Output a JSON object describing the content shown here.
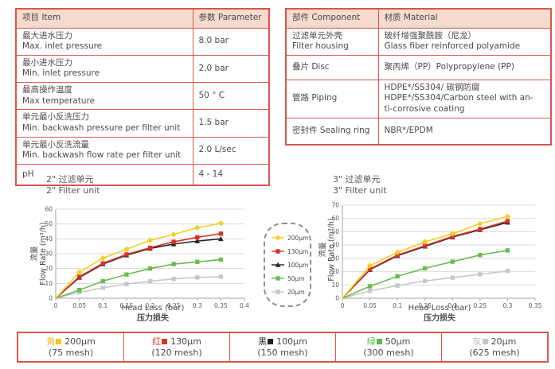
{
  "colors": {
    "table_border": "#d6564c",
    "table_header_bg": "#f5dacd",
    "grid": "#d9d9d9",
    "axis": "#a6a6a6",
    "text": "#4a4a4a"
  },
  "tables": {
    "item": {
      "headers": [
        "项目 Item",
        "参数 Parameter"
      ],
      "rows": [
        {
          "item": "最大进水压力\nMax. inlet pressure",
          "value": "8.0 bar"
        },
        {
          "item": "最小进水压力\nMin. inlet pressure",
          "value": "2.0 bar"
        },
        {
          "item": "最高操作温度\nMax temperature",
          "value": "50 ° C"
        },
        {
          "item": "单元最小反洗压力\nMin. backwash pressure per filter unit",
          "value": "1.5 bar"
        },
        {
          "item": "单元最小反洗流量\nMin. backwash flow rate per filter unit",
          "value": "2.0 L/sec"
        },
        {
          "item": "pH",
          "value": "4 - 14"
        }
      ]
    },
    "component": {
      "headers": [
        "部件 Component",
        "材质 Material"
      ],
      "rows": [
        {
          "component": "过滤单元外壳\nFilter housing",
          "material": "玻纤增强聚酰胺（尼龙）\nGlass fiber reinforced polyamide"
        },
        {
          "component": "叠片 Disc",
          "material": "聚丙烯（PP）Polypropylene (PP)"
        },
        {
          "component": "管路 Piping",
          "material": "HDPE*/SS304/ 碳钢防腐\nHDPE*/SS304/Carbon steel with an-\nti-corrosive coating"
        },
        {
          "component": "密封件 Sealing ring",
          "material": "NBR*/EPDM"
        }
      ]
    }
  },
  "chart_data": [
    {
      "type": "line",
      "title_zh": "2\"  过滤单元",
      "title_en": "2\"  Filter unit",
      "ylabel_zh": "流量",
      "ylabel_en": "Flow Rate (m³/h)",
      "xlabel": "Head Loss (bar)",
      "xlabel_zh": "压力损失",
      "ymax": 60,
      "yticks": [
        0,
        10,
        20,
        30,
        40,
        50,
        60
      ],
      "xmax": 0.4,
      "xticks": [
        "0",
        "0.05",
        "0.1",
        "0.15",
        "0.2",
        "0.25",
        "0.3",
        "0.35",
        "0.4"
      ],
      "x": [
        0,
        0.05,
        0.1,
        0.15,
        0.2,
        0.25,
        0.3,
        0.35
      ],
      "grid": "horizontal",
      "legend_position": "between-charts",
      "series": [
        {
          "name": "200μm",
          "color": "#f2d025",
          "marker": "diamond",
          "values": [
            0,
            17.5,
            27,
            33,
            39,
            43,
            47.5,
            50.5
          ]
        },
        {
          "name": "130μm",
          "color": "#dd3327",
          "marker": "square",
          "values": [
            0,
            14.5,
            23.5,
            29.5,
            34,
            38,
            41,
            43.5
          ]
        },
        {
          "name": "100μm",
          "color": "#222222",
          "marker": "triangle",
          "values": [
            0,
            14,
            23,
            29,
            33.5,
            36.5,
            38.5,
            40
          ]
        },
        {
          "name": "50μm",
          "color": "#67bd50",
          "marker": "square",
          "values": [
            0,
            5.5,
            11.5,
            16,
            20,
            23,
            24.5,
            26
          ]
        },
        {
          "name": "20μm",
          "color": "#c7c7c7",
          "marker": "square",
          "values": [
            0,
            4,
            7,
            9.5,
            11.5,
            13,
            14,
            14.5
          ]
        }
      ]
    },
    {
      "type": "line",
      "title_zh": "3\"  过滤单元",
      "title_en": "3\"  Filter unit",
      "ylabel_zh": "流量",
      "ylabel_en": "Flow Rate (m³/h)",
      "xlabel": "Head Loss (bar)",
      "xlabel_zh": "压力损失",
      "ymax": 70,
      "yticks": [
        0,
        10,
        20,
        30,
        40,
        50,
        60,
        70
      ],
      "xmax": 0.35,
      "xticks": [
        "0",
        "0.05",
        "0.1",
        "0.15",
        "0.2",
        "0.25",
        "0.3",
        "0.35"
      ],
      "x": [
        0,
        0.05,
        0.1,
        0.15,
        0.2,
        0.25,
        0.3
      ],
      "grid": "horizontal",
      "series": [
        {
          "name": "200μm",
          "color": "#f2d025",
          "marker": "diamond",
          "values": [
            0,
            24.5,
            34.5,
            42.5,
            48.5,
            56,
            61.5
          ]
        },
        {
          "name": "130μm",
          "color": "#dd3327",
          "marker": "square",
          "values": [
            0,
            22,
            32.5,
            39.5,
            46.5,
            52,
            58
          ]
        },
        {
          "name": "100μm",
          "color": "#222222",
          "marker": "triangle",
          "values": [
            0,
            21.5,
            32,
            39,
            46,
            51.5,
            57
          ]
        },
        {
          "name": "50μm",
          "color": "#67bd50",
          "marker": "square",
          "values": [
            0,
            9,
            16.5,
            22.5,
            27.5,
            32.5,
            36
          ]
        },
        {
          "name": "20μm",
          "color": "#c7c7c7",
          "marker": "square",
          "values": [
            0,
            5.5,
            9.5,
            13,
            15.5,
            18,
            20.5
          ]
        }
      ]
    }
  ],
  "mid_legend": {
    "items": [
      {
        "label": "200μm",
        "color": "#f2d025",
        "marker": "diamond"
      },
      {
        "label": "130μm",
        "color": "#dd3327",
        "marker": "square"
      },
      {
        "label": "100μm",
        "color": "#222222",
        "marker": "triangle"
      },
      {
        "label": "50μm",
        "color": "#67bd50",
        "marker": "square"
      },
      {
        "label": "20μm",
        "color": "#c7c7c7",
        "marker": "square"
      }
    ]
  },
  "bottom_legend": {
    "cells": [
      {
        "zh": "黄",
        "color": "#f0b62a",
        "sq_color": "#f5c518",
        "size": "200μm",
        "mesh": "(75 mesh)"
      },
      {
        "zh": "红",
        "color": "#dd3327",
        "sq_color": "#dd3327",
        "size": "130μm",
        "mesh": "(120 mesh)"
      },
      {
        "zh": "黑",
        "color": "#222222",
        "sq_color": "#222222",
        "size": "100μm",
        "mesh": "(150 mesh)"
      },
      {
        "zh": "绿",
        "color": "#57b947",
        "sq_color": "#57b947",
        "size": "50μm",
        "mesh": "(300 mesh)"
      },
      {
        "zh": "灰",
        "color": "#b8b8b8",
        "sq_color": "#c7c7c7",
        "size": "20μm",
        "mesh": "(625 mesh)"
      }
    ]
  }
}
